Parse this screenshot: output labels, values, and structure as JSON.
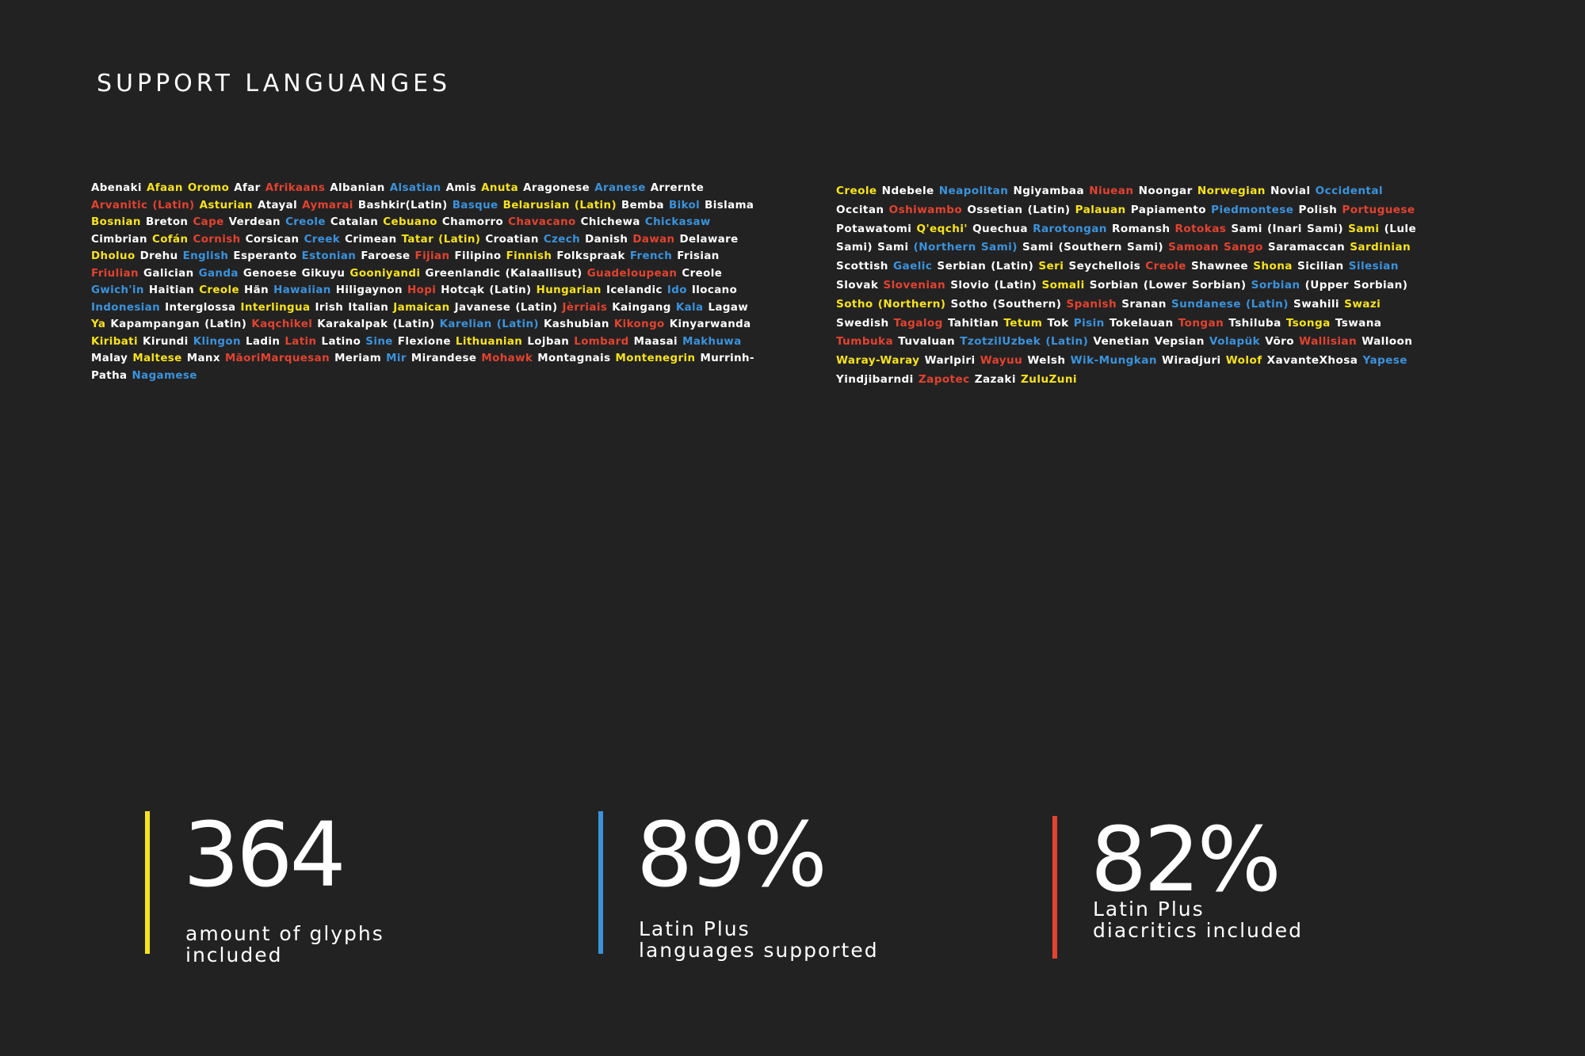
{
  "title": "SUPPORT LANGUANGES",
  "colors": {
    "white": "#ffffff",
    "yellow": "#f7e31c",
    "blue": "#3a93dc",
    "red": "#e2432f",
    "background": "#232223"
  },
  "languages_left": [
    [
      "Abenaki",
      "w"
    ],
    [
      "Afaan Oromo",
      "y"
    ],
    [
      "Afar",
      "w"
    ],
    [
      "Afrikaans",
      "r"
    ],
    [
      "Albanian",
      "w"
    ],
    [
      "Alsatian",
      "b"
    ],
    [
      "Amis",
      "w"
    ],
    [
      "Anuta",
      "y"
    ],
    [
      "Aragonese",
      "w"
    ],
    [
      "Aranese",
      "b"
    ],
    [
      "Arrernte",
      "w"
    ],
    [
      "Arvanitic (Latin)",
      "r"
    ],
    [
      "Asturian",
      "y"
    ],
    [
      "Atayal",
      "w"
    ],
    [
      "Aymarai",
      "r"
    ],
    [
      "Bashkir(Latin)",
      "w"
    ],
    [
      "Basque",
      "b"
    ],
    [
      "Belarusian (Latin)",
      "y"
    ],
    [
      "Bemba",
      "w"
    ],
    [
      "Bikol",
      "b"
    ],
    [
      "Bislama",
      "w"
    ],
    [
      "Bosnian",
      "y"
    ],
    [
      "Breton",
      "w"
    ],
    [
      "Cape",
      "r"
    ],
    [
      "Verdean",
      "w"
    ],
    [
      "Creole",
      "b"
    ],
    [
      "Catalan",
      "w"
    ],
    [
      "Cebuano",
      "y"
    ],
    [
      "Chamorro",
      "w"
    ],
    [
      "Chavacano",
      "r"
    ],
    [
      "Chichewa",
      "w"
    ],
    [
      "Chickasaw",
      "b"
    ],
    [
      "Cimbrian",
      "w"
    ],
    [
      "Cofán",
      "y"
    ],
    [
      "Cornish",
      "r"
    ],
    [
      "Corsican",
      "w"
    ],
    [
      "Creek",
      "b"
    ],
    [
      "Crimean",
      "w"
    ],
    [
      "Tatar (Latin)",
      "y"
    ],
    [
      "Croatian",
      "w"
    ],
    [
      "Czech",
      "b"
    ],
    [
      "Danish",
      "w"
    ],
    [
      "Dawan",
      "r"
    ],
    [
      "Delaware",
      "w"
    ],
    [
      "Dholuo",
      "y"
    ],
    [
      "Drehu",
      "w"
    ],
    [
      "English",
      "b"
    ],
    [
      "Esperanto",
      "w"
    ],
    [
      "Estonian",
      "b"
    ],
    [
      "Faroese",
      "w"
    ],
    [
      "Fijian",
      "r"
    ],
    [
      "Filipino",
      "w"
    ],
    [
      "Finnish",
      "y"
    ],
    [
      "Folkspraak",
      "w"
    ],
    [
      "French",
      "b"
    ],
    [
      "Frisian",
      "w"
    ],
    [
      "Friulian",
      "r"
    ],
    [
      "Galician",
      "w"
    ],
    [
      "Ganda",
      "b"
    ],
    [
      "Genoese",
      "w"
    ],
    [
      "Gikuyu",
      "w"
    ],
    [
      "Gooniyandi",
      "y"
    ],
    [
      "Greenlandic (Kalaallisut)",
      "w"
    ],
    [
      "Guadeloupean",
      "r"
    ],
    [
      "Creole",
      "w"
    ],
    [
      "Gwich'in",
      "b"
    ],
    [
      "Haitian",
      "w"
    ],
    [
      "Creole",
      "y"
    ],
    [
      "Hän",
      "w"
    ],
    [
      "Hawaiian",
      "b"
    ],
    [
      "Hiligaynon",
      "w"
    ],
    [
      "Hopi",
      "r"
    ],
    [
      "Hotcąk (Latin)",
      "w"
    ],
    [
      "Hungarian",
      "y"
    ],
    [
      "Icelandic",
      "w"
    ],
    [
      "Ido",
      "b"
    ],
    [
      "Ilocano",
      "w"
    ],
    [
      "Indonesian",
      "b"
    ],
    [
      "Interglossa",
      "w"
    ],
    [
      "Interlingua",
      "y"
    ],
    [
      "Irish",
      "w"
    ],
    [
      "Italian",
      "w"
    ],
    [
      "Jamaican",
      "y"
    ],
    [
      "Javanese (Latin)",
      "w"
    ],
    [
      "Jèrriais",
      "r"
    ],
    [
      "Kaingang",
      "w"
    ],
    [
      "Kala",
      "b"
    ],
    [
      "Lagaw",
      "w"
    ],
    [
      "Ya",
      "y"
    ],
    [
      "Kapampangan (Latin)",
      "w"
    ],
    [
      "Kaqchikel",
      "r"
    ],
    [
      "Karakalpak (Latin)",
      "w"
    ],
    [
      "Karelian (Latin)",
      "b"
    ],
    [
      "Kashubian",
      "w"
    ],
    [
      "Kikongo",
      "r"
    ],
    [
      "Kinyarwanda",
      "w"
    ],
    [
      "Kiribati",
      "y"
    ],
    [
      "Kirundi",
      "w"
    ],
    [
      "Klingon",
      "b"
    ],
    [
      "Ladin",
      "w"
    ],
    [
      "Latin",
      "r"
    ],
    [
      "Latino",
      "w"
    ],
    [
      "Sine",
      "b"
    ],
    [
      "Flexione",
      "w"
    ],
    [
      "Lithuanian",
      "y"
    ],
    [
      "Lojban",
      "w"
    ],
    [
      "Lombard",
      "r"
    ],
    [
      "Maasai",
      "w"
    ],
    [
      "Makhuwa",
      "b"
    ],
    [
      "Malay",
      "w"
    ],
    [
      "Maltese",
      "y"
    ],
    [
      "Manx",
      "w"
    ],
    [
      "MāoriMarquesan",
      "r"
    ],
    [
      "Meriam",
      "w"
    ],
    [
      "Mir",
      "b"
    ],
    [
      "Mirandese",
      "w"
    ],
    [
      "Mohawk",
      "r"
    ],
    [
      "Montagnais",
      "w"
    ],
    [
      "Montenegrin",
      "y"
    ],
    [
      "Murrinh-Patha",
      "w"
    ],
    [
      "Nagamese",
      "b"
    ]
  ],
  "languages_right": [
    [
      "Creole",
      "y"
    ],
    [
      "Ndebele",
      "w"
    ],
    [
      "Neapolitan",
      "b"
    ],
    [
      "Ngiyambaa",
      "w"
    ],
    [
      "Niuean",
      "r"
    ],
    [
      "Noongar",
      "w"
    ],
    [
      "Norwegian",
      "y"
    ],
    [
      "Novial",
      "w"
    ],
    [
      "Occidental",
      "b"
    ],
    [
      "Occitan",
      "w"
    ],
    [
      "Oshiwambo",
      "r"
    ],
    [
      "Ossetian (Latin)",
      "w"
    ],
    [
      "Palauan",
      "y"
    ],
    [
      "Papiamento",
      "w"
    ],
    [
      "Piedmontese",
      "b"
    ],
    [
      "Polish",
      "w"
    ],
    [
      "Portuguese",
      "r"
    ],
    [
      "Potawatomi",
      "w"
    ],
    [
      "Q'eqchi'",
      "y"
    ],
    [
      "Quechua",
      "w"
    ],
    [
      "Rarotongan",
      "b"
    ],
    [
      "Romansh",
      "w"
    ],
    [
      "Rotokas",
      "r"
    ],
    [
      "Sami (Inari Sami)",
      "w"
    ],
    [
      "Sami",
      "y"
    ],
    [
      "(Lule Sami) Sami",
      "w"
    ],
    [
      "(Northern Sami)",
      "b"
    ],
    [
      "Sami (Southern Sami)",
      "w"
    ],
    [
      "Samoan",
      "r"
    ],
    [
      "Sango",
      "r"
    ],
    [
      "Saramaccan",
      "w"
    ],
    [
      "Sardinian",
      "y"
    ],
    [
      "Scottish",
      "w"
    ],
    [
      "Gaelic",
      "b"
    ],
    [
      "Serbian (Latin)",
      "w"
    ],
    [
      "Seri",
      "y"
    ],
    [
      "Seychellois",
      "w"
    ],
    [
      "Creole",
      "r"
    ],
    [
      "Shawnee",
      "w"
    ],
    [
      "Shona",
      "y"
    ],
    [
      "Sicilian",
      "w"
    ],
    [
      "Silesian",
      "b"
    ],
    [
      "Slovak",
      "w"
    ],
    [
      "Slovenian",
      "r"
    ],
    [
      "Slovio (Latin)",
      "w"
    ],
    [
      "Somali",
      "y"
    ],
    [
      "Sorbian (Lower Sorbian)",
      "w"
    ],
    [
      "Sorbian",
      "b"
    ],
    [
      "(Upper Sorbian)",
      "w"
    ],
    [
      "Sotho (Northern)",
      "y"
    ],
    [
      "Sotho (Southern)",
      "w"
    ],
    [
      "Spanish",
      "r"
    ],
    [
      "Sranan",
      "w"
    ],
    [
      "Sundanese (Latin)",
      "b"
    ],
    [
      "Swahili",
      "w"
    ],
    [
      "Swazi",
      "y"
    ],
    [
      "Swedish",
      "w"
    ],
    [
      "Tagalog",
      "r"
    ],
    [
      "Tahitian",
      "w"
    ],
    [
      "Tetum",
      "y"
    ],
    [
      "Tok",
      "w"
    ],
    [
      "Pisin",
      "b"
    ],
    [
      "Tokelauan",
      "w"
    ],
    [
      "Tongan",
      "r"
    ],
    [
      "Tshiluba",
      "w"
    ],
    [
      "Tsonga",
      "y"
    ],
    [
      "Tswana",
      "w"
    ],
    [
      "Tumbuka",
      "r"
    ],
    [
      "Tuvaluan",
      "w"
    ],
    [
      "TzotzilUzbek (Latin)",
      "b"
    ],
    [
      "Venetian",
      "w"
    ],
    [
      "Vepsian",
      "w"
    ],
    [
      "Volapük",
      "b"
    ],
    [
      "Võro",
      "w"
    ],
    [
      "Wallisian",
      "r"
    ],
    [
      "Walloon",
      "w"
    ],
    [
      "Waray-Waray",
      "y"
    ],
    [
      "Warlpiri",
      "w"
    ],
    [
      "Wayuu",
      "r"
    ],
    [
      "Welsh",
      "w"
    ],
    [
      "Wik-Mungkan",
      "b"
    ],
    [
      "Wiradjuri",
      "w"
    ],
    [
      "Wolof",
      "y"
    ],
    [
      "XavanteXhosa",
      "w"
    ],
    [
      "Yapese",
      "b"
    ],
    [
      "Yindjibarndi",
      "w"
    ],
    [
      "Zapotec",
      "r"
    ],
    [
      "Zazaki",
      "w"
    ],
    [
      "ZuluZuni",
      "y"
    ]
  ],
  "stats": [
    {
      "value": "364",
      "caption": "amount of glyphs\nincluded",
      "color": "#f7e31c"
    },
    {
      "value": "89%",
      "caption": "Latin Plus\nlanguages supported",
      "color": "#3a93dc"
    },
    {
      "value": "82%",
      "caption": "Latin Plus\ndiacritics included",
      "color": "#e2432f"
    }
  ]
}
